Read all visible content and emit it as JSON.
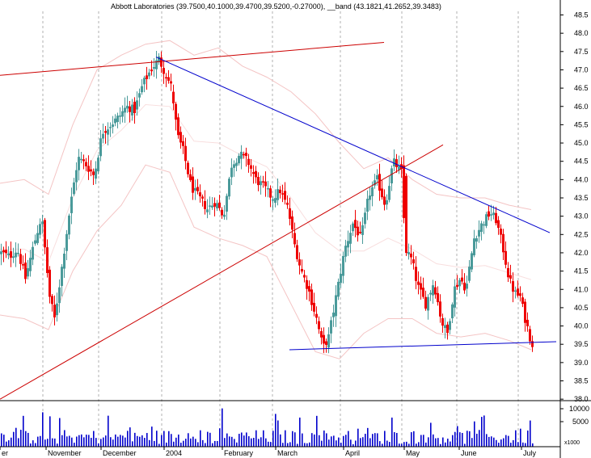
{
  "chart_data": {
    "type": "candlestick",
    "title": "Abbott Laboratories (39.7500,40.1000,39.4700,39.5200,-0.27000), __band (43.1821,41.2652,39.3483)",
    "ylim": [
      37.8,
      48.8
    ],
    "yticks": [
      "48.5",
      "48.0",
      "47.5",
      "47.0",
      "46.5",
      "46.0",
      "45.5",
      "45.0",
      "44.5",
      "44.0",
      "43.5",
      "43.0",
      "42.5",
      "42.0",
      "41.5",
      "41.0",
      "40.5",
      "40.0",
      "39.5",
      "39.0",
      "38.5",
      "38.0"
    ],
    "volume_ticks": [
      "10000",
      "5000"
    ],
    "volume_unit_label": "x1000",
    "month_labels": [
      "er",
      "November",
      "December",
      "2004",
      "February",
      "March",
      "April",
      "May",
      "June",
      "July"
    ],
    "series_anchor_closes": [
      [
        0,
        42.0
      ],
      [
        10,
        41.9
      ],
      [
        20,
        42.1
      ],
      [
        30,
        41.3
      ],
      [
        40,
        42.2
      ],
      [
        50,
        43.0
      ],
      [
        60,
        40.8
      ],
      [
        66,
        40.2
      ],
      [
        75,
        41.6
      ],
      [
        85,
        43.2
      ],
      [
        95,
        44.6
      ],
      [
        105,
        44.4
      ],
      [
        115,
        44.1
      ],
      [
        125,
        45.3
      ],
      [
        135,
        45.5
      ],
      [
        145,
        45.7
      ],
      [
        155,
        46.0
      ],
      [
        165,
        45.9
      ],
      [
        175,
        46.6
      ],
      [
        185,
        47.0
      ],
      [
        195,
        47.3
      ],
      [
        205,
        46.8
      ],
      [
        211,
        46.5
      ],
      [
        218,
        45.2
      ],
      [
        225,
        44.8
      ],
      [
        235,
        43.8
      ],
      [
        245,
        43.5
      ],
      [
        255,
        43.2
      ],
      [
        265,
        43.4
      ],
      [
        275,
        43.0
      ],
      [
        285,
        44.4
      ],
      [
        295,
        44.7
      ],
      [
        305,
        44.5
      ],
      [
        315,
        44.0
      ],
      [
        325,
        43.8
      ],
      [
        335,
        43.5
      ],
      [
        345,
        43.7
      ],
      [
        355,
        43.2
      ],
      [
        362,
        42.3
      ],
      [
        370,
        41.6
      ],
      [
        380,
        41.0
      ],
      [
        390,
        40.2
      ],
      [
        398,
        39.4
      ],
      [
        405,
        39.7
      ],
      [
        415,
        40.9
      ],
      [
        425,
        42.1
      ],
      [
        435,
        42.8
      ],
      [
        445,
        42.4
      ],
      [
        455,
        43.6
      ],
      [
        465,
        44.0
      ],
      [
        475,
        43.3
      ],
      [
        485,
        44.5
      ],
      [
        495,
        44.2
      ],
      [
        500,
        42.1
      ],
      [
        508,
        41.8
      ],
      [
        515,
        41.1
      ],
      [
        525,
        40.6
      ],
      [
        535,
        41.2
      ],
      [
        545,
        40.1
      ],
      [
        552,
        39.8
      ],
      [
        560,
        41.0
      ],
      [
        568,
        41.3
      ],
      [
        575,
        41.0
      ],
      [
        585,
        42.4
      ],
      [
        595,
        42.8
      ],
      [
        605,
        43.1
      ],
      [
        612,
        42.9
      ],
      [
        620,
        42.2
      ],
      [
        628,
        41.3
      ],
      [
        635,
        40.9
      ],
      [
        642,
        40.8
      ],
      [
        648,
        40.2
      ],
      [
        654,
        39.7
      ],
      [
        657,
        39.52
      ]
    ],
    "band_upper_points": [
      [
        0,
        43.9
      ],
      [
        30,
        44.0
      ],
      [
        60,
        43.6
      ],
      [
        90,
        45.5
      ],
      [
        120,
        47.0
      ],
      [
        150,
        47.4
      ],
      [
        180,
        47.7
      ],
      [
        210,
        47.8
      ],
      [
        240,
        47.4
      ],
      [
        270,
        47.6
      ],
      [
        300,
        47.1
      ],
      [
        330,
        46.8
      ],
      [
        360,
        46.4
      ],
      [
        390,
        45.8
      ],
      [
        420,
        45.0
      ],
      [
        450,
        44.3
      ],
      [
        480,
        44.6
      ],
      [
        510,
        44.0
      ],
      [
        540,
        43.6
      ],
      [
        570,
        43.5
      ],
      [
        600,
        43.5
      ],
      [
        630,
        43.3
      ],
      [
        657,
        43.18
      ]
    ],
    "band_lower_points": [
      [
        0,
        40.3
      ],
      [
        30,
        40.2
      ],
      [
        60,
        39.9
      ],
      [
        90,
        41.5
      ],
      [
        120,
        42.6
      ],
      [
        150,
        43.3
      ],
      [
        180,
        44.4
      ],
      [
        210,
        44.2
      ],
      [
        240,
        42.7
      ],
      [
        270,
        42.4
      ],
      [
        300,
        42.2
      ],
      [
        330,
        41.9
      ],
      [
        360,
        40.6
      ],
      [
        390,
        39.3
      ],
      [
        420,
        39.1
      ],
      [
        450,
        39.8
      ],
      [
        480,
        40.2
      ],
      [
        510,
        40.2
      ],
      [
        540,
        39.8
      ],
      [
        570,
        39.7
      ],
      [
        600,
        39.8
      ],
      [
        630,
        39.6
      ],
      [
        657,
        39.35
      ]
    ],
    "trendlines": [
      {
        "color": "#cc0000",
        "points": [
          [
            0,
            46.85
          ],
          [
            475,
            47.75
          ]
        ]
      },
      {
        "color": "#cc0000",
        "points": [
          [
            0,
            38.0
          ],
          [
            548,
            44.95
          ]
        ]
      },
      {
        "color": "#0000cc",
        "points": [
          [
            193,
            47.35
          ],
          [
            680,
            42.55
          ]
        ]
      },
      {
        "color": "#0000cc",
        "points": [
          [
            358,
            39.35
          ],
          [
            688,
            39.57
          ]
        ]
      }
    ],
    "colors": {
      "up": "#4a9a9a",
      "down": "#ee0000",
      "band": "#f4c4c4",
      "grid": "#b0b0b0"
    }
  }
}
